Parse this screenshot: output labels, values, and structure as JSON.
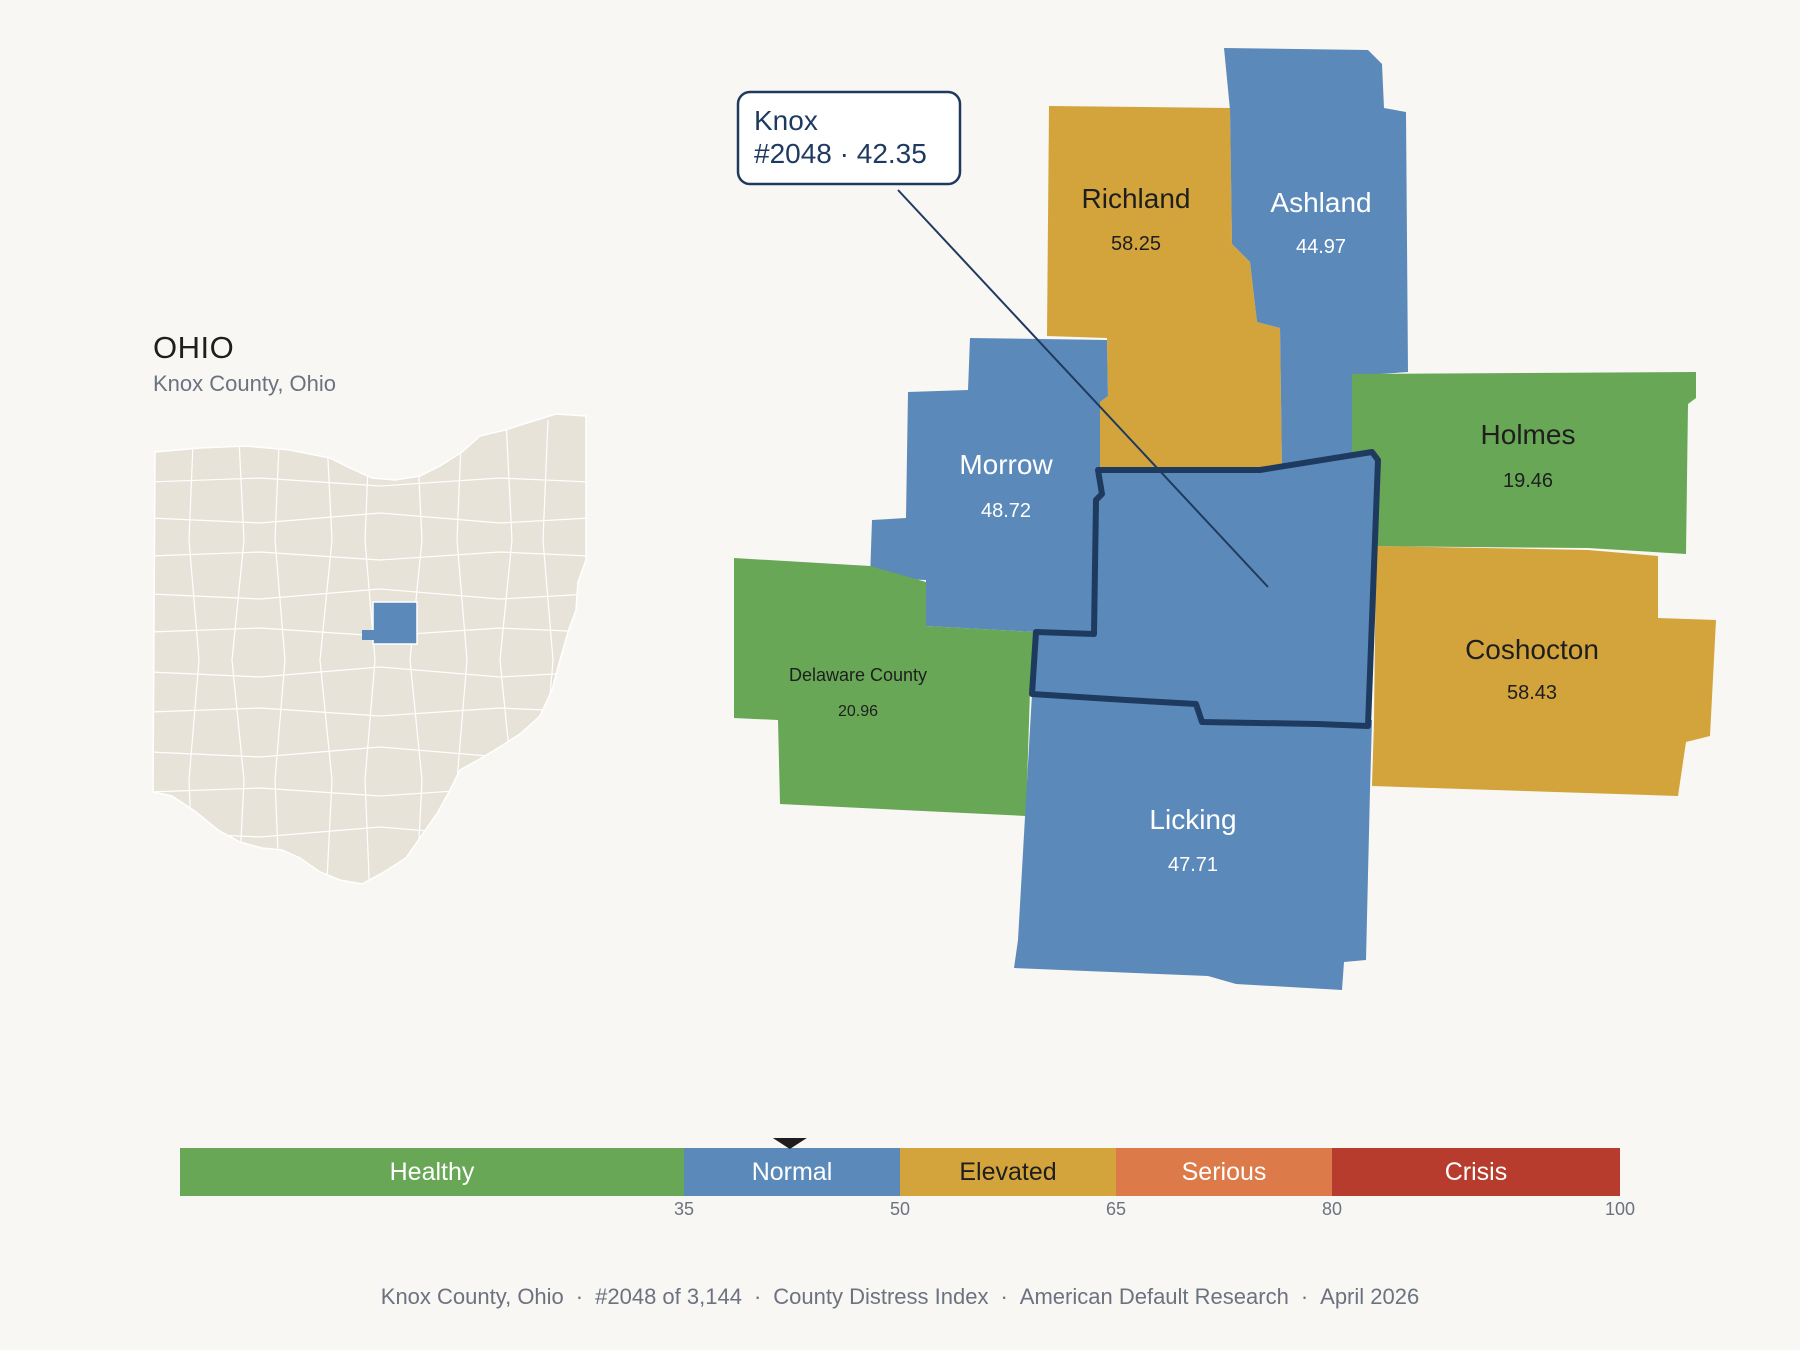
{
  "inset": {
    "state_name": "OHIO",
    "subtitle": "Knox County, Ohio"
  },
  "callout": {
    "name": "Knox",
    "detail": "#2048 · 42.35"
  },
  "counties": [
    {
      "id": "richland",
      "name": "Richland",
      "value": "58.25",
      "tier": "Elevated"
    },
    {
      "id": "ashland",
      "name": "Ashland",
      "value": "44.97",
      "tier": "Normal"
    },
    {
      "id": "morrow",
      "name": "Morrow",
      "value": "48.72",
      "tier": "Normal"
    },
    {
      "id": "holmes",
      "name": "Holmes",
      "value": "19.46",
      "tier": "Healthy"
    },
    {
      "id": "delaware",
      "name": "Delaware County",
      "value": "20.96",
      "tier": "Healthy"
    },
    {
      "id": "coshocton",
      "name": "Coshocton",
      "value": "58.43",
      "tier": "Elevated"
    },
    {
      "id": "licking",
      "name": "Licking",
      "value": "47.71",
      "tier": "Normal"
    },
    {
      "id": "knox",
      "name": "Knox",
      "value": "42.35",
      "tier": "Normal",
      "highlighted": true
    }
  ],
  "legend": {
    "min": 0,
    "max": 100,
    "marker_value": 42.35,
    "segments": [
      {
        "label": "Healthy",
        "from": 0,
        "to": 35,
        "color": "#67a756"
      },
      {
        "label": "Normal",
        "from": 35,
        "to": 50,
        "color": "#5b8aba"
      },
      {
        "label": "Elevated",
        "from": 50,
        "to": 65,
        "color": "#d3a43b"
      },
      {
        "label": "Serious",
        "from": 65,
        "to": 80,
        "color": "#dc7a4a"
      },
      {
        "label": "Crisis",
        "from": 80,
        "to": 100,
        "color": "#b83c2d"
      }
    ],
    "ticks": [
      "35",
      "50",
      "65",
      "80",
      "100"
    ]
  },
  "footer": {
    "county": "Knox County, Ohio",
    "rank": "#2048 of 3,144",
    "index": "County Distress Index",
    "source": "American Default Research",
    "date": "April 2026"
  },
  "colors": {
    "background": "#f9f7f3",
    "healthy": "#67a756",
    "normal": "#5b8aba",
    "elevated": "#d3a43b",
    "state_fill": "#e8e3d8",
    "highlight_stroke": "#1f3a5f"
  }
}
